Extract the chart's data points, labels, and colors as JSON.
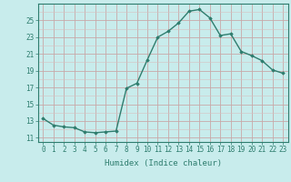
{
  "x": [
    0,
    1,
    2,
    3,
    4,
    5,
    6,
    7,
    8,
    9,
    10,
    11,
    12,
    13,
    14,
    15,
    16,
    17,
    18,
    19,
    20,
    21,
    22,
    23
  ],
  "y": [
    13.3,
    12.5,
    12.3,
    12.2,
    11.7,
    11.6,
    11.7,
    11.8,
    16.9,
    17.5,
    20.3,
    23.0,
    23.7,
    24.7,
    26.1,
    26.3,
    25.3,
    23.2,
    23.4,
    21.3,
    20.8,
    20.2,
    19.1,
    18.7
  ],
  "line_color": "#2e7d6e",
  "marker": "D",
  "markersize": 1.8,
  "linewidth": 1.0,
  "bg_color": "#c8ecec",
  "grid_major_color": "#c8a8a8",
  "grid_minor_color": "#d8c0c0",
  "xlabel": "Humidex (Indice chaleur)",
  "xlabel_fontsize": 6.5,
  "ylabel_ticks": [
    11,
    13,
    15,
    17,
    19,
    21,
    23,
    25
  ],
  "xlim": [
    -0.5,
    23.5
  ],
  "ylim": [
    10.5,
    27.0
  ],
  "xtick_fontsize": 5.5,
  "ytick_fontsize": 5.5,
  "tick_color": "#2e7d6e",
  "spine_color": "#2e7d6e"
}
